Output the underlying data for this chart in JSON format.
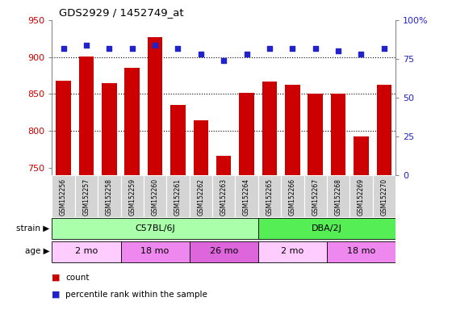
{
  "title": "GDS2929 / 1452749_at",
  "samples": [
    "GSM152256",
    "GSM152257",
    "GSM152258",
    "GSM152259",
    "GSM152260",
    "GSM152261",
    "GSM152262",
    "GSM152263",
    "GSM152264",
    "GSM152265",
    "GSM152266",
    "GSM152267",
    "GSM152268",
    "GSM152269",
    "GSM152270"
  ],
  "counts": [
    868,
    901,
    865,
    885,
    927,
    835,
    814,
    766,
    852,
    867,
    863,
    850,
    850,
    792,
    862
  ],
  "percentile_ranks": [
    82,
    84,
    82,
    82,
    84,
    82,
    78,
    74,
    78,
    82,
    82,
    82,
    80,
    78,
    82
  ],
  "ylim_left": [
    740,
    950
  ],
  "ylim_right": [
    0,
    100
  ],
  "yticks_left": [
    750,
    800,
    850,
    900,
    950
  ],
  "yticks_right": [
    0,
    25,
    50,
    75,
    100
  ],
  "bar_color": "#cc0000",
  "dot_color": "#2222cc",
  "bar_bottom": 740,
  "strain_groups": [
    {
      "label": "C57BL/6J",
      "start": 0,
      "end": 9,
      "color": "#aaffaa"
    },
    {
      "label": "DBA/2J",
      "start": 9,
      "end": 15,
      "color": "#55ee55"
    }
  ],
  "age_groups": [
    {
      "label": "2 mo",
      "start": 0,
      "end": 3,
      "color": "#ffccff"
    },
    {
      "label": "18 mo",
      "start": 3,
      "end": 6,
      "color": "#ee88ee"
    },
    {
      "label": "26 mo",
      "start": 6,
      "end": 9,
      "color": "#dd66dd"
    },
    {
      "label": "2 mo",
      "start": 9,
      "end": 12,
      "color": "#ffccff"
    },
    {
      "label": "18 mo",
      "start": 12,
      "end": 15,
      "color": "#ee88ee"
    }
  ],
  "grid_yticks": [
    800,
    850,
    900
  ],
  "axis_color_left": "#cc0000",
  "axis_color_right": "#2222cc",
  "background_color": "#ffffff",
  "plot_bg_color": "#ffffff",
  "label_bg_color": "#d4d4d4"
}
